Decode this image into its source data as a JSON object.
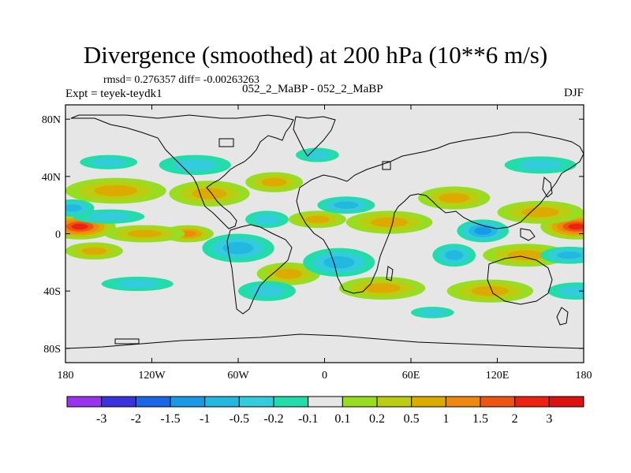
{
  "chart_data": {
    "type": "heatmap",
    "title": "Divergence (smoothed) at 200 hPa (10**6 m/s)",
    "stats": "rmsd= 0.276357 diff= -0.00263263",
    "expt": "Expt = teyek-teydk1",
    "runs": "052_2_MaBP - 052_2_MaBP",
    "season": "DJF",
    "x_axis": {
      "range": [
        -180,
        180
      ],
      "ticks": [
        -180,
        -120,
        -60,
        0,
        60,
        120,
        180
      ],
      "tick_labels": [
        "180",
        "120W",
        "60W",
        "0",
        "60E",
        "120E",
        "180"
      ]
    },
    "y_axis": {
      "range": [
        -90,
        90
      ],
      "ticks": [
        80,
        40,
        0,
        -40,
        -80
      ],
      "tick_labels": [
        "80N",
        "40N",
        "0",
        "40S",
        "80S"
      ]
    },
    "colorbar": {
      "levels": [
        -3,
        -2,
        -1.5,
        -1,
        -0.5,
        -0.2,
        -0.1,
        0.1,
        0.2,
        0.5,
        1,
        1.5,
        2,
        3
      ],
      "labels": [
        "-3",
        "-2",
        "-1.5",
        "-1",
        "-0.5",
        "-0.2",
        "-0.1",
        "0.1",
        "0.2",
        "0.5",
        "1",
        "1.5",
        "2",
        "3"
      ],
      "colors": [
        "#9933ee",
        "#3a33dd",
        "#1a66e6",
        "#1a99e6",
        "#22b8e0",
        "#33ccdd",
        "#22ddaa",
        "#e6e6e6",
        "#99dd22",
        "#bbcc11",
        "#ddaa00",
        "#ee8811",
        "#ee5511",
        "#ee2211",
        "#dd1111"
      ]
    },
    "anomaly_features": [
      {
        "lon": -170,
        "lat": 5,
        "lon_r": 25,
        "lat_r": 9,
        "value": 2.2
      },
      {
        "lon": 175,
        "lat": 5,
        "lon_r": 25,
        "lat_r": 9,
        "value": 2.2
      },
      {
        "lon": -160,
        "lat": -12,
        "lon_r": 20,
        "lat_r": 6,
        "value": 0.6
      },
      {
        "lon": -145,
        "lat": 30,
        "lon_r": 35,
        "lat_r": 9,
        "value": 0.9
      },
      {
        "lon": -80,
        "lat": 28,
        "lon_r": 28,
        "lat_r": 9,
        "value": 0.8
      },
      {
        "lon": -35,
        "lat": 36,
        "lon_r": 20,
        "lat_r": 7,
        "value": 0.6
      },
      {
        "lon": -95,
        "lat": 0,
        "lon_r": 18,
        "lat_r": 6,
        "value": 1.2
      },
      {
        "lon": -125,
        "lat": 0,
        "lon_r": 28,
        "lat_r": 6,
        "value": 0.5
      },
      {
        "lon": -5,
        "lat": 10,
        "lon_r": 20,
        "lat_r": 6,
        "value": 0.6
      },
      {
        "lon": 45,
        "lat": 8,
        "lon_r": 30,
        "lat_r": 8,
        "value": 0.7
      },
      {
        "lon": 90,
        "lat": 25,
        "lon_r": 25,
        "lat_r": 8,
        "value": 0.5
      },
      {
        "lon": 150,
        "lat": 15,
        "lon_r": 30,
        "lat_r": 8,
        "value": 0.5
      },
      {
        "lon": 140,
        "lat": -15,
        "lon_r": 30,
        "lat_r": 8,
        "value": 0.6
      },
      {
        "lon": 40,
        "lat": -38,
        "lon_r": 30,
        "lat_r": 8,
        "value": 0.5
      },
      {
        "lon": 115,
        "lat": -40,
        "lon_r": 30,
        "lat_r": 8,
        "value": 0.5
      },
      {
        "lon": -25,
        "lat": -28,
        "lon_r": 22,
        "lat_r": 8,
        "value": 0.5
      },
      {
        "lon": -90,
        "lat": 48,
        "lon_r": 25,
        "lat_r": 7,
        "value": -0.4
      },
      {
        "lon": -150,
        "lat": 12,
        "lon_r": 25,
        "lat_r": 5,
        "value": -0.4
      },
      {
        "lon": -60,
        "lat": -10,
        "lon_r": 25,
        "lat_r": 10,
        "value": -0.5
      },
      {
        "lon": -40,
        "lat": -40,
        "lon_r": 20,
        "lat_r": 7,
        "value": -0.3
      },
      {
        "lon": 15,
        "lat": 20,
        "lon_r": 20,
        "lat_r": 6,
        "value": -0.5
      },
      {
        "lon": 10,
        "lat": -20,
        "lon_r": 25,
        "lat_r": 10,
        "value": -0.6
      },
      {
        "lon": 110,
        "lat": 2,
        "lon_r": 18,
        "lat_r": 8,
        "value": -1.0
      },
      {
        "lon": 170,
        "lat": -15,
        "lon_r": 20,
        "lat_r": 6,
        "value": -0.5
      },
      {
        "lon": -175,
        "lat": 18,
        "lon_r": 15,
        "lat_r": 6,
        "value": -0.5
      },
      {
        "lon": 90,
        "lat": -15,
        "lon_r": 15,
        "lat_r": 8,
        "value": -0.6
      },
      {
        "lon": -40,
        "lat": 10,
        "lon_r": 15,
        "lat_r": 6,
        "value": -0.4
      },
      {
        "lon": 150,
        "lat": 48,
        "lon_r": 25,
        "lat_r": 6,
        "value": -0.3
      },
      {
        "lon": -5,
        "lat": 55,
        "lon_r": 15,
        "lat_r": 5,
        "value": -0.3
      },
      {
        "lon": -150,
        "lat": 50,
        "lon_r": 20,
        "lat_r": 5,
        "value": -0.3
      },
      {
        "lon": 175,
        "lat": -40,
        "lon_r": 20,
        "lat_r": 6,
        "value": -0.3
      },
      {
        "lon": -130,
        "lat": -35,
        "lon_r": 25,
        "lat_r": 5,
        "value": -0.3
      },
      {
        "lon": 75,
        "lat": -55,
        "lon_r": 15,
        "lat_r": 4,
        "value": -0.3
      }
    ]
  }
}
